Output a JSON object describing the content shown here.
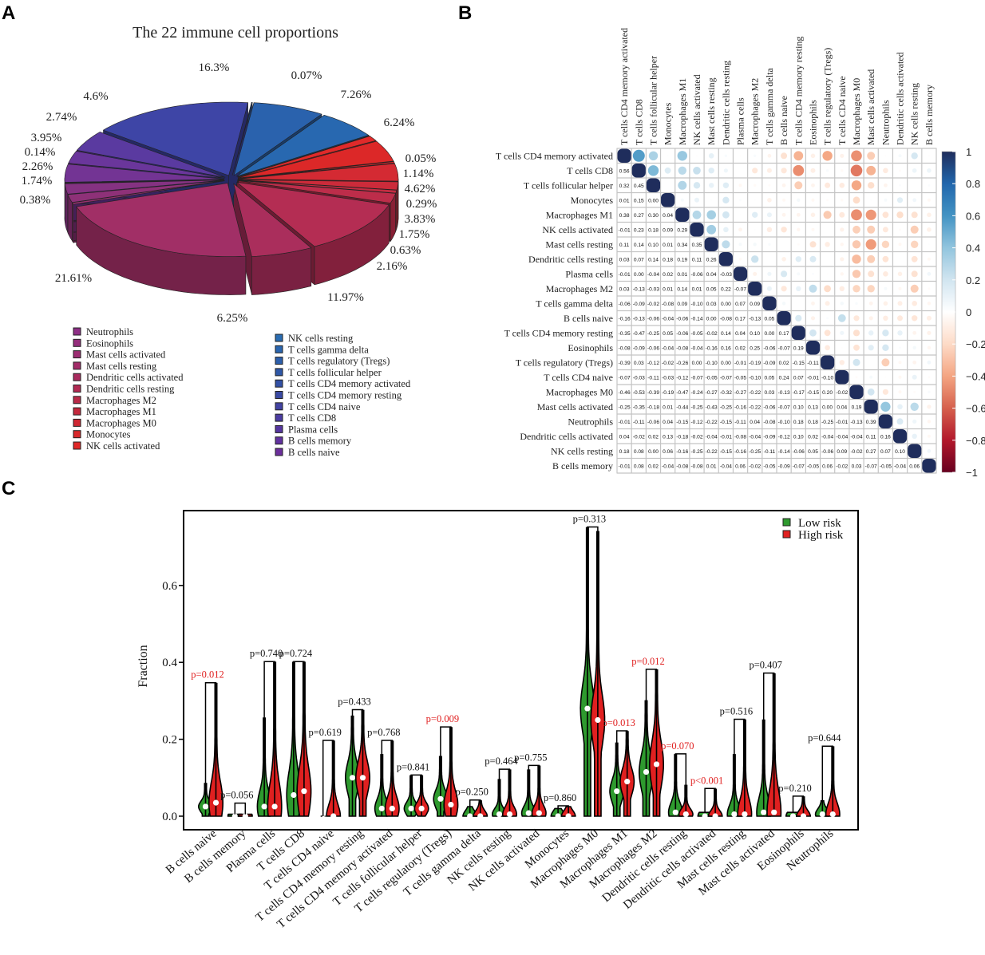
{
  "panels": {
    "a": "A",
    "b": "B",
    "c": "C"
  },
  "chart_data": [
    {
      "type": "pie",
      "title": "The 22 immune cell proportions",
      "slices": [
        {
          "label": "0.07%",
          "value": 0.07,
          "color": "#2f5ca8"
        },
        {
          "label": "7.26%",
          "value": 7.26,
          "color": "#2a62ad"
        },
        {
          "label": "6.24%",
          "value": 6.24,
          "color": "#2868b0"
        },
        {
          "label": "0.05%",
          "value": 0.05,
          "color": "#2a6db3"
        },
        {
          "label": "1.14%",
          "value": 1.14,
          "color": "#e02a2a"
        },
        {
          "label": "4.62%",
          "value": 4.62,
          "color": "#dc2828"
        },
        {
          "label": "0.29%",
          "value": 0.29,
          "color": "#d92a2f"
        },
        {
          "label": "3.83%",
          "value": 3.83,
          "color": "#d42a33"
        },
        {
          "label": "1.75%",
          "value": 1.75,
          "color": "#cc2b3a"
        },
        {
          "label": "0.63%",
          "value": 0.63,
          "color": "#c52c42"
        },
        {
          "label": "2.16%",
          "value": 2.16,
          "color": "#bd2d4a"
        },
        {
          "label": "11.97%",
          "value": 11.97,
          "color": "#b42d53"
        },
        {
          "label": "6.25%",
          "value": 6.25,
          "color": "#aa2e5c"
        },
        {
          "label": "21.61%",
          "value": 21.61,
          "color": "#a12f66"
        },
        {
          "label": "0.38%",
          "value": 0.38,
          "color": "#97306f"
        },
        {
          "label": "1.74%",
          "value": 1.74,
          "color": "#8e3178"
        },
        {
          "label": "2.26%",
          "value": 2.26,
          "color": "#853282"
        },
        {
          "label": "0.14%",
          "value": 0.14,
          "color": "#7c338b"
        },
        {
          "label": "3.95%",
          "value": 3.95,
          "color": "#733494"
        },
        {
          "label": "2.74%",
          "value": 2.74,
          "color": "#6a369b"
        },
        {
          "label": "4.6%",
          "value": 4.6,
          "color": "#5a3aa0"
        },
        {
          "label": "16.3%",
          "value": 16.3,
          "color": "#3e45a6"
        }
      ],
      "legend_left": [
        {
          "label": "Neutrophils",
          "color": "#8e2f86"
        },
        {
          "label": "Eosinophils",
          "color": "#952e7c"
        },
        {
          "label": "Mast cells activated",
          "color": "#9c2d72"
        },
        {
          "label": "Mast cells resting",
          "color": "#a32c68"
        },
        {
          "label": "Dendritic cells activated",
          "color": "#aa2b5e"
        },
        {
          "label": "Dendritic cells resting",
          "color": "#b22a53"
        },
        {
          "label": "Macrophages M2",
          "color": "#ba2a48"
        },
        {
          "label": "Macrophages M1",
          "color": "#c4293d"
        },
        {
          "label": "Macrophages M0",
          "color": "#ce2833"
        },
        {
          "label": "Monocytes",
          "color": "#d8282b"
        },
        {
          "label": "NK cells activated",
          "color": "#e02828"
        }
      ],
      "legend_right": [
        {
          "label": "NK cells resting",
          "color": "#2a6db3"
        },
        {
          "label": "T cells gamma delta",
          "color": "#2b66b0"
        },
        {
          "label": "T cells regulatory (Tregs)",
          "color": "#2d5fac"
        },
        {
          "label": "T cells follicular helper",
          "color": "#2f58a8"
        },
        {
          "label": "T cells CD4 memory activated",
          "color": "#3351a6"
        },
        {
          "label": "T cells CD4 memory resting",
          "color": "#3a4aa4"
        },
        {
          "label": "T cells CD4 naive",
          "color": "#4243a2"
        },
        {
          "label": "T cells CD8",
          "color": "#4b3ca2"
        },
        {
          "label": "Plasma cells",
          "color": "#5636a0"
        },
        {
          "label": "B cells memory",
          "color": "#6232a0"
        },
        {
          "label": "B cells naive",
          "color": "#6c2f9c"
        }
      ]
    },
    {
      "type": "heatmap",
      "labels": [
        "T cells CD4 memory activated",
        "T cells CD8",
        "T cells follicular helper",
        "Monocytes",
        "Macrophages M1",
        "NK cells activated",
        "Mast cells resting",
        "Dendritic cells resting",
        "Plasma cells",
        "Macrophages M2",
        "T cells gamma delta",
        "B cells naive",
        "T cells CD4 memory resting",
        "Eosinophils",
        "T cells regulatory (Tregs)",
        "T cells CD4 naive",
        "Macrophages M0",
        "Mast cells activated",
        "Neutrophils",
        "Dendritic cells activated",
        "NK cells resting",
        "B cells memory"
      ],
      "lower_triangle": [
        [],
        [
          0.56
        ],
        [
          0.32,
          0.45
        ],
        [
          0.01,
          0.15,
          0.0
        ],
        [
          0.38,
          0.27,
          0.3,
          0.04
        ],
        [
          -0.01,
          0.23,
          0.18,
          0.09,
          0.29
        ],
        [
          0.11,
          0.14,
          0.1,
          0.01,
          0.34,
          0.35
        ],
        [
          0.03,
          0.07,
          0.14,
          0.18,
          0.19,
          0.11,
          0.26
        ],
        [
          -0.01,
          0.0,
          -0.04,
          0.02,
          0.01,
          -0.06,
          0.04,
          -0.03
        ],
        [
          0.03,
          -0.13,
          -0.03,
          0.01,
          0.14,
          0.01,
          0.05,
          0.22,
          -0.07
        ],
        [
          -0.06,
          -0.09,
          -0.02,
          -0.08,
          0.09,
          -0.1,
          0.03,
          0.0,
          0.07,
          0.09
        ],
        [
          -0.16,
          -0.13,
          -0.06,
          -0.04,
          -0.06,
          -0.14,
          0.0,
          -0.08,
          0.17,
          -0.13,
          0.05
        ],
        [
          -0.35,
          -0.47,
          -0.25,
          0.05,
          -0.06,
          -0.05,
          -0.02,
          0.14,
          0.04,
          0.1,
          0.0,
          0.17
        ],
        [
          -0.08,
          -0.09,
          -0.06,
          -0.04,
          -0.08,
          -0.04,
          -0.16,
          0.16,
          0.02,
          0.25,
          -0.06,
          -0.07,
          0.19
        ],
        [
          -0.39,
          0.03,
          -0.12,
          -0.02,
          -0.26,
          0.0,
          -0.1,
          0.0,
          -0.01,
          -0.19,
          -0.09,
          0.02,
          -0.15,
          -0.11
        ],
        [
          -0.07,
          -0.03,
          -0.11,
          -0.03,
          -0.12,
          -0.07,
          -0.05,
          -0.07,
          -0.05,
          -0.1,
          0.05,
          0.24,
          0.07,
          -0.01,
          -0.1
        ],
        [
          -0.46,
          -0.53,
          -0.39,
          -0.19,
          -0.47,
          -0.24,
          -0.27,
          -0.32,
          -0.27,
          -0.22,
          0.03,
          -0.13,
          -0.17,
          -0.15,
          0.2,
          -0.02
        ],
        [
          -0.25,
          -0.35,
          -0.18,
          0.01,
          -0.44,
          -0.25,
          -0.43,
          -0.25,
          -0.16,
          -0.22,
          -0.06,
          -0.07,
          0.1,
          0.13,
          0.0,
          0.04,
          0.19
        ],
        [
          -0.01,
          -0.11,
          -0.06,
          0.04,
          -0.15,
          -0.12,
          -0.22,
          -0.15,
          -0.11,
          0.04,
          -0.08,
          -0.1,
          0.18,
          0.18,
          -0.25,
          -0.01,
          -0.13,
          0.39
        ],
        [
          0.04,
          -0.02,
          0.02,
          0.13,
          -0.18,
          -0.02,
          -0.04,
          -0.01,
          -0.08,
          -0.04,
          -0.09,
          -0.12,
          0.1,
          0.02,
          -0.04,
          -0.04,
          -0.04,
          0.11,
          0.16
        ],
        [
          0.18,
          0.08,
          0.0,
          0.06,
          -0.16,
          -0.25,
          -0.22,
          -0.15,
          -0.16,
          -0.25,
          -0.11,
          -0.14,
          -0.06,
          0.05,
          -0.06,
          0.09,
          -0.02,
          0.27,
          0.07,
          0.1
        ],
        [
          -0.01,
          0.08,
          0.02,
          -0.04,
          -0.08,
          -0.08,
          0.01,
          -0.04,
          0.06,
          -0.02,
          -0.05,
          -0.09,
          -0.07,
          -0.05,
          0.06,
          -0.02,
          0.03,
          -0.07,
          -0.05,
          -0.04,
          0.06
        ]
      ],
      "colorbar_ticks": [
        "1",
        "0.8",
        "0.6",
        "0.4",
        "0.2",
        "0",
        "−0.2",
        "−0.4",
        "−0.6",
        "−0.8",
        "−1"
      ],
      "range": [
        -1,
        1
      ]
    },
    {
      "type": "violin",
      "ylabel": "Fraction",
      "ylim": [
        0,
        0.78
      ],
      "yticks": [
        "0.0",
        "0.2",
        "0.4",
        "0.6"
      ],
      "ytick_values": [
        0,
        0.2,
        0.4,
        0.6
      ],
      "legend": [
        {
          "label": "Low risk",
          "color": "#2e9a2e"
        },
        {
          "label": "High risk",
          "color": "#e02020"
        }
      ],
      "groups": [
        {
          "name": "B cells naive",
          "low_max": 0.085,
          "high_max": 0.345,
          "low_median": 0.025,
          "high_median": 0.035,
          "p": "p=0.012",
          "significant": true
        },
        {
          "name": "B cells memory",
          "low_max": 0.005,
          "high_max": 0.005,
          "low_median": 0,
          "high_median": 0,
          "p": "p=0.056",
          "significant": false,
          "bracket": 0.032
        },
        {
          "name": "Plasma cells",
          "low_max": 0.255,
          "high_max": 0.4,
          "low_median": 0.025,
          "high_median": 0.025,
          "p": "p=0.740",
          "significant": false
        },
        {
          "name": "T cells CD8",
          "low_max": 0.4,
          "high_max": 0.4,
          "low_median": 0.055,
          "high_median": 0.065,
          "p": "p=0.724",
          "significant": false
        },
        {
          "name": "T cells CD4 naive",
          "low_max": 0.0,
          "high_max": 0.195,
          "low_median": 0,
          "high_median": 0,
          "p": "p=0.619",
          "significant": false
        },
        {
          "name": "T cells CD4 memory resting",
          "low_max": 0.26,
          "high_max": 0.275,
          "low_median": 0.1,
          "high_median": 0.1,
          "p": "p=0.433",
          "significant": false
        },
        {
          "name": "T cells CD4 memory activated",
          "low_max": 0.16,
          "high_max": 0.195,
          "low_median": 0.02,
          "high_median": 0.02,
          "p": "p=0.768",
          "significant": false
        },
        {
          "name": "T cells follicular helper",
          "low_max": 0.105,
          "high_max": 0.105,
          "low_median": 0.02,
          "high_median": 0.02,
          "p": "p=0.841",
          "significant": false
        },
        {
          "name": "T cells regulatory (Tregs)",
          "low_max": 0.155,
          "high_max": 0.23,
          "low_median": 0.045,
          "high_median": 0.03,
          "p": "p=0.009",
          "significant": true
        },
        {
          "name": "T cells gamma delta",
          "low_max": 0.025,
          "high_max": 0.04,
          "low_median": 0,
          "high_median": 0,
          "p": "p=0.250",
          "significant": false
        },
        {
          "name": "NK cells resting",
          "low_max": 0.095,
          "high_max": 0.12,
          "low_median": 0.005,
          "high_median": 0.005,
          "p": "p=0.464",
          "significant": false
        },
        {
          "name": "NK cells activated",
          "low_max": 0.12,
          "high_max": 0.13,
          "low_median": 0.008,
          "high_median": 0.008,
          "p": "p=0.755",
          "significant": false
        },
        {
          "name": "Monocytes",
          "low_max": 0.02,
          "high_max": 0.025,
          "low_median": 0,
          "high_median": 0,
          "p": "p=0.860",
          "significant": false
        },
        {
          "name": "Macrophages M0",
          "low_max": 0.75,
          "high_max": 0.74,
          "low_median": 0.28,
          "high_median": 0.25,
          "p": "p=0.313",
          "significant": false
        },
        {
          "name": "Macrophages M1",
          "low_max": 0.19,
          "high_max": 0.22,
          "low_median": 0.065,
          "high_median": 0.09,
          "p": "p=0.013",
          "significant": true
        },
        {
          "name": "Macrophages M2",
          "low_max": 0.3,
          "high_max": 0.38,
          "low_median": 0.115,
          "high_median": 0.135,
          "p": "p=0.012",
          "significant": true
        },
        {
          "name": "Dendritic cells resting",
          "low_max": 0.16,
          "high_max": 0.08,
          "low_median": 0.01,
          "high_median": 0.005,
          "p": "p=0.070",
          "significant": true
        },
        {
          "name": "Dendritic cells activated",
          "low_max": 0.01,
          "high_max": 0.07,
          "low_median": 0,
          "high_median": 0,
          "p": "p<0.001",
          "significant": true
        },
        {
          "name": "Mast cells resting",
          "low_max": 0.16,
          "high_max": 0.25,
          "low_median": 0.005,
          "high_median": 0.005,
          "p": "p=0.516",
          "significant": false
        },
        {
          "name": "Mast cells activated",
          "low_max": 0.25,
          "high_max": 0.37,
          "low_median": 0.01,
          "high_median": 0.01,
          "p": "p=0.407",
          "significant": false
        },
        {
          "name": "Eosinophils",
          "low_max": 0.01,
          "high_max": 0.05,
          "low_median": 0,
          "high_median": 0,
          "p": "p=0.210",
          "significant": false
        },
        {
          "name": "Neutrophils",
          "low_max": 0.04,
          "high_max": 0.18,
          "low_median": 0.005,
          "high_median": 0.005,
          "p": "p=0.644",
          "significant": false
        }
      ]
    }
  ]
}
